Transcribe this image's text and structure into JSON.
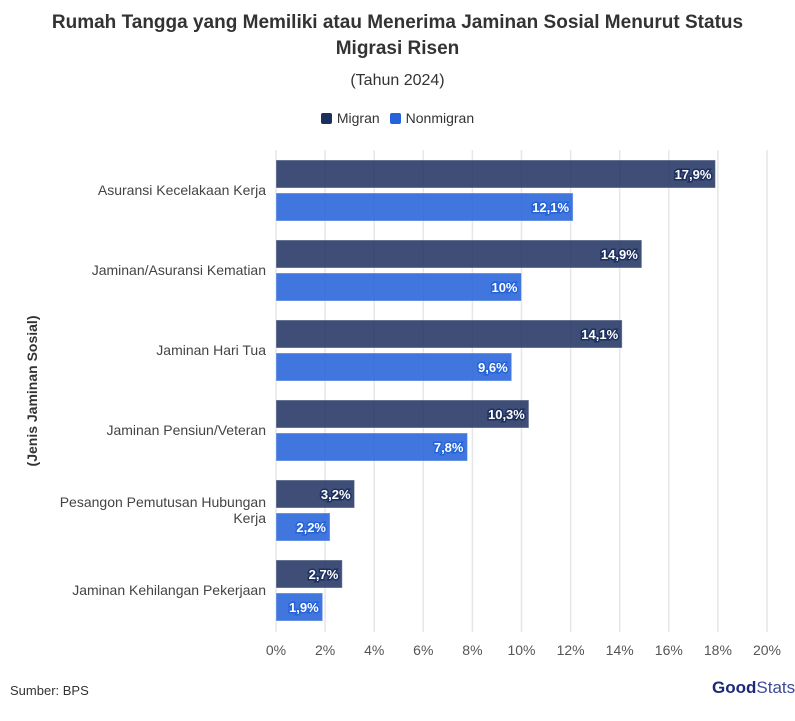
{
  "title_line1": "Rumah Tangga yang Memiliki atau Menerima Jaminan Sosial Menurut Status",
  "title_line2": "Migrasi Risen",
  "subtitle": "(Tahun 2024)",
  "source": "Sumber: BPS",
  "logo": {
    "bold": "Good",
    "light": "Stats"
  },
  "colors": {
    "Migran": "#1c2f5e",
    "Nonmigran": "#2563d9",
    "grid": "#e6e6e6",
    "text": "#333333"
  },
  "chart_data": {
    "type": "bar",
    "orientation": "horizontal",
    "title": "Rumah Tangga yang Memiliki atau Menerima Jaminan Sosial Menurut Status Migrasi Risen",
    "subtitle": "(Tahun 2024)",
    "ylabel": "(Jenis Jaminan Sosial)",
    "xlabel": "",
    "xlim": [
      0,
      20
    ],
    "xticks": [
      "0%",
      "2%",
      "4%",
      "6%",
      "8%",
      "10%",
      "12%",
      "14%",
      "16%",
      "18%",
      "20%"
    ],
    "grid": true,
    "legend": "top-center",
    "categories": [
      "Asuransi Kecelakaan Kerja",
      "Jaminan/Asuransi Kematian",
      "Jaminan Hari Tua",
      "Jaminan Pensiun/Veteran",
      "Pesangon Pemutusan Hubungan Kerja",
      "Jaminan Kehilangan Pekerjaan"
    ],
    "category_lines": [
      [
        "Asuransi Kecelakaan Kerja"
      ],
      [
        "Jaminan/Asuransi Kematian"
      ],
      [
        "Jaminan Hari Tua"
      ],
      [
        "Jaminan Pensiun/Veteran"
      ],
      [
        "Pesangon Pemutusan Hubungan",
        "Kerja"
      ],
      [
        "Jaminan Kehilangan Pekerjaan"
      ]
    ],
    "series": [
      {
        "name": "Migran",
        "values": [
          17.9,
          14.9,
          14.1,
          10.3,
          3.2,
          2.7
        ],
        "labels": [
          "17,9%",
          "14,9%",
          "14,1%",
          "10,3%",
          "3,2%",
          "2,7%"
        ]
      },
      {
        "name": "Nonmigran",
        "values": [
          12.1,
          10,
          9.6,
          7.8,
          2.2,
          1.9
        ],
        "labels": [
          "12,1%",
          "10%",
          "9,6%",
          "7,8%",
          "2,2%",
          "1,9%"
        ]
      }
    ]
  }
}
